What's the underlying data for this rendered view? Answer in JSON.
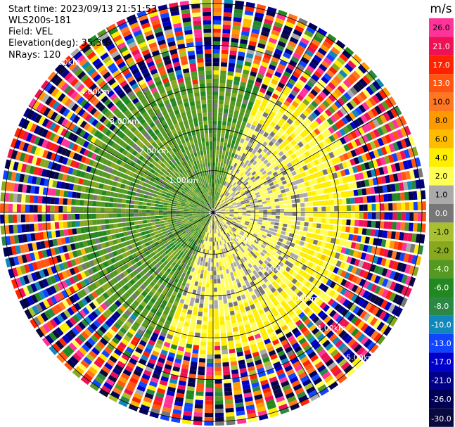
{
  "header": {
    "start_time": "Start time: 2023/09/13 21:51:53",
    "instrument": "WLS200s-181",
    "field": "Field: VEL",
    "elevation": "Elevation(deg): 35.30",
    "nrays": "NRays: 120"
  },
  "chart_data": {
    "type": "heatmap",
    "subtype": "ppi-polar",
    "field": "VEL",
    "units": "m/s",
    "nrays": 120,
    "elevation_deg": 35.3,
    "range_rings_km": [
      1.0,
      2.0,
      3.0,
      4.0,
      5.0
    ],
    "ring_labels": [
      "1.00km",
      "2.00km",
      "3.00km",
      "4.00km",
      "5.00km"
    ],
    "max_range_km": 5.1,
    "spokes_deg": [
      0,
      30,
      60,
      90,
      120,
      150,
      180,
      210,
      240,
      270,
      300,
      330
    ],
    "vmin": -30.0,
    "vmax": 30.0,
    "colorbar": {
      "label": "m/s",
      "ticks": [
        "26.0",
        "21.0",
        "17.0",
        "13.0",
        "10.0",
        "8.0",
        "6.0",
        "4.0",
        "2.0",
        "1.0",
        "0.0",
        "-1.0",
        "-2.0",
        "-4.0",
        "-6.0",
        "-8.0",
        "-10.0",
        "-13.0",
        "-17.0",
        "-21.0",
        "-26.0",
        "-30.0"
      ],
      "colors": [
        "#ff3399",
        "#ee1155",
        "#ff2200",
        "#ff5511",
        "#ff7722",
        "#ff9900",
        "#ffbb00",
        "#ffee00",
        "#ffff55",
        "#aaaaaa",
        "#777777",
        "#a8c030",
        "#88a820",
        "#559922",
        "#228822",
        "#2a8844",
        "#1188bb",
        "#1144ff",
        "#0000cc",
        "#000088",
        "#000055",
        "#0a0a40"
      ]
    },
    "pattern": {
      "near_range_positive_sector_deg": [
        20,
        200
      ],
      "near_range_positive_value": 2.5,
      "near_range_negative_value": -3.0,
      "noise_begins_km": 3.0,
      "description_values_mps": {
        "approaching": -4.0,
        "receding": 3.0
      }
    },
    "grid": true,
    "legend_position": "right"
  }
}
